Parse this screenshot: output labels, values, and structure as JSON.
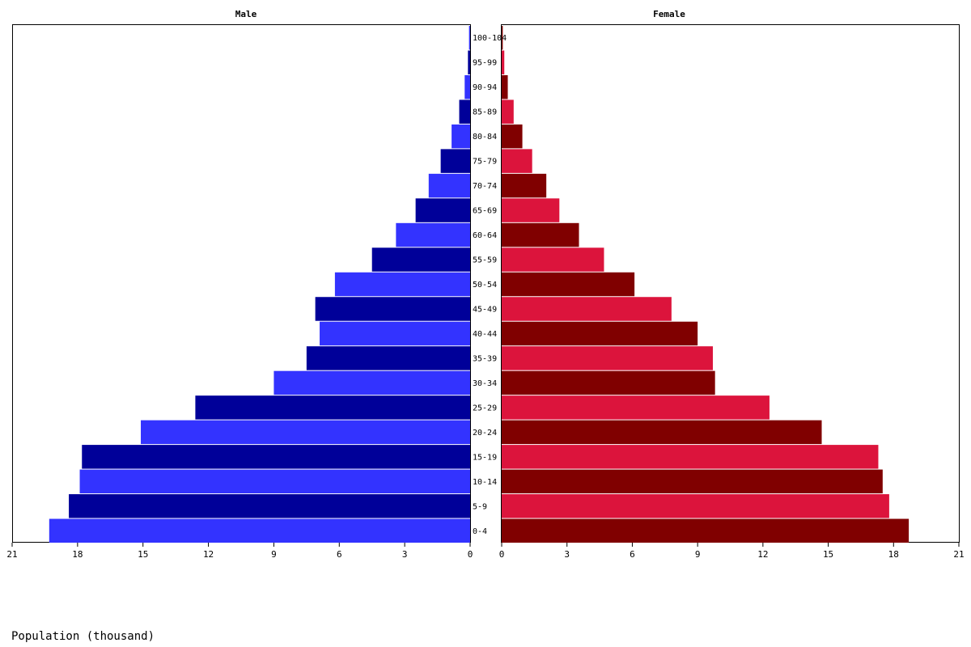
{
  "chart_data": {
    "type": "bar",
    "orientation": "horizontal",
    "layout": "population-pyramid",
    "panels": [
      {
        "title": "Male",
        "side": "left",
        "xlim": [
          0,
          21
        ],
        "xticks": [
          0,
          3,
          6,
          9,
          12,
          15,
          18,
          21
        ],
        "colors": [
          "#3333ff",
          "#000099"
        ]
      },
      {
        "title": "Female",
        "side": "right",
        "xlim": [
          0,
          21
        ],
        "xticks": [
          0,
          3,
          6,
          9,
          12,
          15,
          18,
          21
        ],
        "colors": [
          "#800000",
          "#dc143c"
        ]
      }
    ],
    "categories": [
      "0-4",
      "5-9",
      "10-14",
      "15-19",
      "20-24",
      "25-29",
      "30-34",
      "35-39",
      "40-44",
      "45-49",
      "50-54",
      "55-59",
      "60-64",
      "65-69",
      "70-74",
      "75-79",
      "80-84",
      "85-89",
      "90-94",
      "95-99",
      "100-104"
    ],
    "series": [
      {
        "name": "Male",
        "values": [
          19.3,
          18.4,
          17.9,
          17.8,
          15.1,
          12.6,
          9.0,
          7.5,
          6.9,
          7.1,
          6.2,
          4.5,
          3.4,
          2.5,
          1.9,
          1.35,
          0.85,
          0.5,
          0.25,
          0.1,
          0.05
        ]
      },
      {
        "name": "Female",
        "values": [
          18.7,
          17.8,
          17.5,
          17.3,
          14.7,
          12.3,
          9.8,
          9.7,
          9.0,
          7.8,
          6.1,
          4.7,
          3.55,
          2.65,
          2.05,
          1.4,
          0.95,
          0.55,
          0.28,
          0.12,
          0.05
        ]
      }
    ],
    "xlabel": "Population (thousand)",
    "grid": false,
    "legend": "none"
  }
}
